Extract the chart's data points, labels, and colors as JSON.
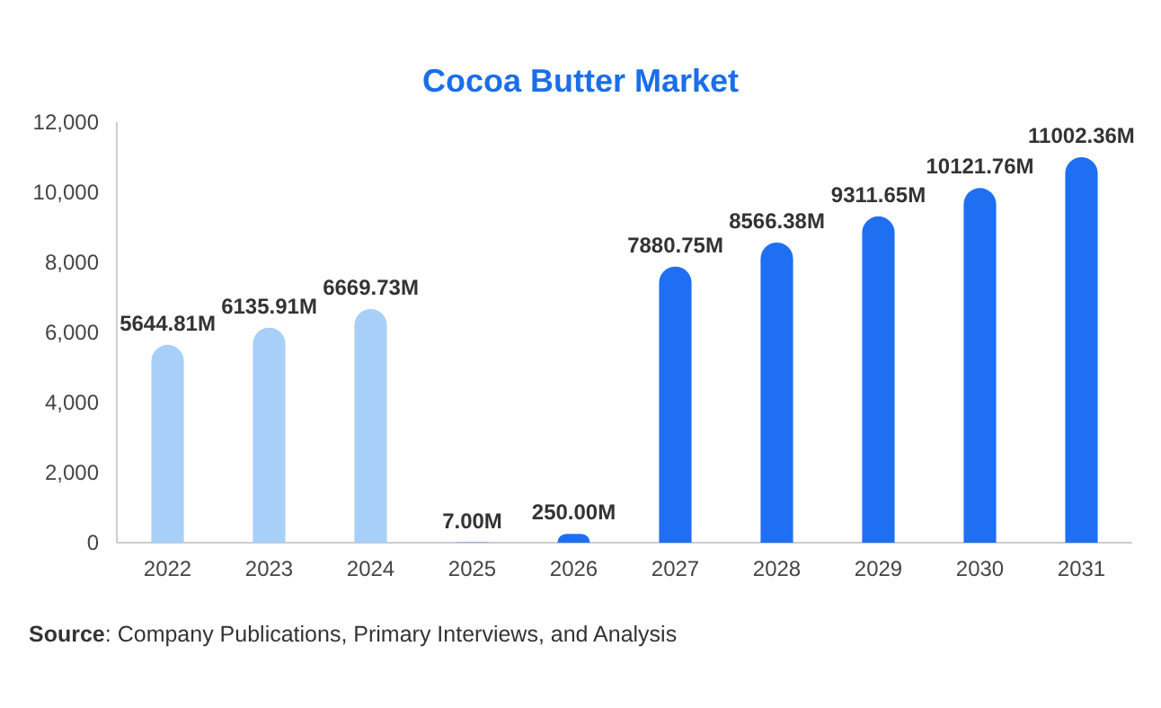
{
  "chart_data": {
    "type": "bar",
    "title": "Cocoa Butter Market",
    "categories": [
      "2022",
      "2023",
      "2024",
      "2025",
      "2026",
      "2027",
      "2028",
      "2029",
      "2030",
      "2031"
    ],
    "values": [
      5644.81,
      6135.91,
      6669.73,
      7.0,
      250.0,
      7880.75,
      8566.38,
      9311.65,
      10121.76,
      11002.36
    ],
    "colors": [
      "#a8cff8",
      "#a8cff8",
      "#a8cff8",
      "#1f6ff2",
      "#1f6ff2",
      "#1f6ff2",
      "#1f6ff2",
      "#1f6ff2",
      "#1f6ff2",
      "#1f6ff2"
    ],
    "value_labels": [
      "5644.81M",
      "6135.91M",
      "6669.73M",
      "7.00M",
      "250.00M",
      "7880.75M",
      "8566.38M",
      "9311.65M",
      "10121.76M",
      "11002.36M"
    ],
    "ylim": [
      0,
      12000
    ],
    "yticks": [
      0,
      {
        "value": 2000,
        "label": "2,000"
      },
      {
        "value": 4000,
        "label": "4,000"
      },
      {
        "value": 6000,
        "label": "6,000"
      },
      {
        "value": 8000,
        "label": "8,000"
      },
      {
        "value": 10000,
        "label": "10,000"
      },
      {
        "value": 12000,
        "label": "12,000"
      }
    ],
    "grid": false,
    "annotations": [
      "Source: Company Publications, Primary Interviews, and Analysis"
    ]
  }
}
